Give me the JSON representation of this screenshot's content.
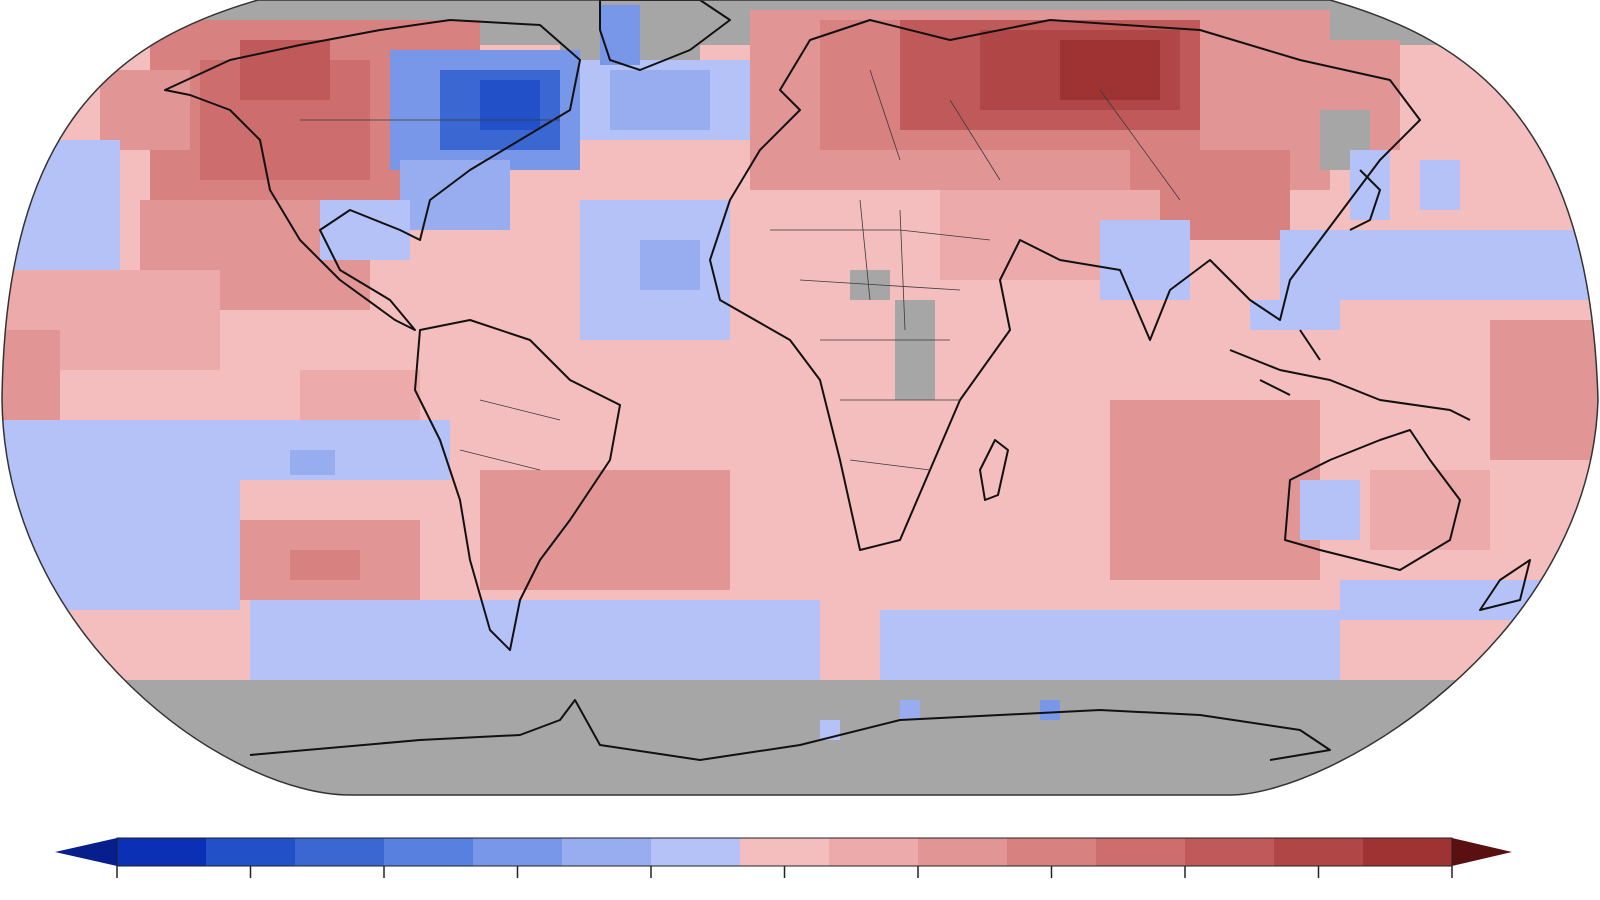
{
  "map": {
    "projection": "robinson",
    "background": "#ffffff",
    "no_data_color": "#a6a6a6",
    "coastline_color": "#111111",
    "border_color": "#3a3a3a"
  },
  "legend": {
    "colors": [
      "#0b2fb5",
      "#2250c8",
      "#3a67d2",
      "#5880de",
      "#7997e8",
      "#98adf0",
      "#b5c2f7",
      "#f4bebe",
      "#ecaaaa",
      "#e19595",
      "#d88181",
      "#cd6d6d",
      "#c05a5a",
      "#b14646",
      "#9f3232"
    ],
    "extend_low_color": "#061f8c",
    "extend_high_color": "#5a1010",
    "tick_count": 11
  }
}
